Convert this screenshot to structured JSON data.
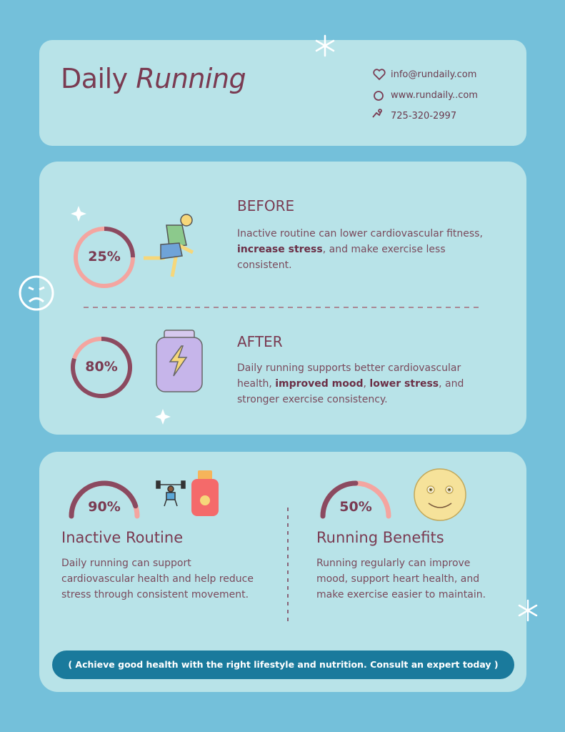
{
  "header": {
    "title": [
      "Daily",
      "Running"
    ],
    "contacts": [
      "info@rundaily.com",
      "www.rundaily..com",
      "725-320-2997"
    ]
  },
  "comparison": [
    {
      "percent": {
        "value": 25,
        "label": "25%"
      },
      "heading": "BEFORE",
      "text": [
        "Inactive routine can lower cardiovascular fitness, ",
        "increase stress",
        ", and make exercise less consistent."
      ]
    },
    {
      "percent": {
        "value": 80,
        "label": "80%"
      },
      "heading": "AFTER",
      "text": [
        "Daily running supports better cardiovascular health, ",
        "improved mood",
        ", ",
        "lower stress",
        ", and stronger exercise consistency."
      ]
    }
  ],
  "benefits": [
    {
      "percent": {
        "value": 90,
        "label": "90%"
      },
      "heading": "Inactive Routine",
      "text": "Daily running can support cardiovascular health and help reduce stress through consistent movement."
    },
    {
      "percent": {
        "value": 50,
        "label": "50%"
      },
      "heading": "Running Benefits",
      "text": "Running regularly can improve mood, support heart health, and make exercise easier to maintain."
    }
  ],
  "footer": "( Achieve good health with the right lifestyle and nutrition. Consult an expert today )"
}
